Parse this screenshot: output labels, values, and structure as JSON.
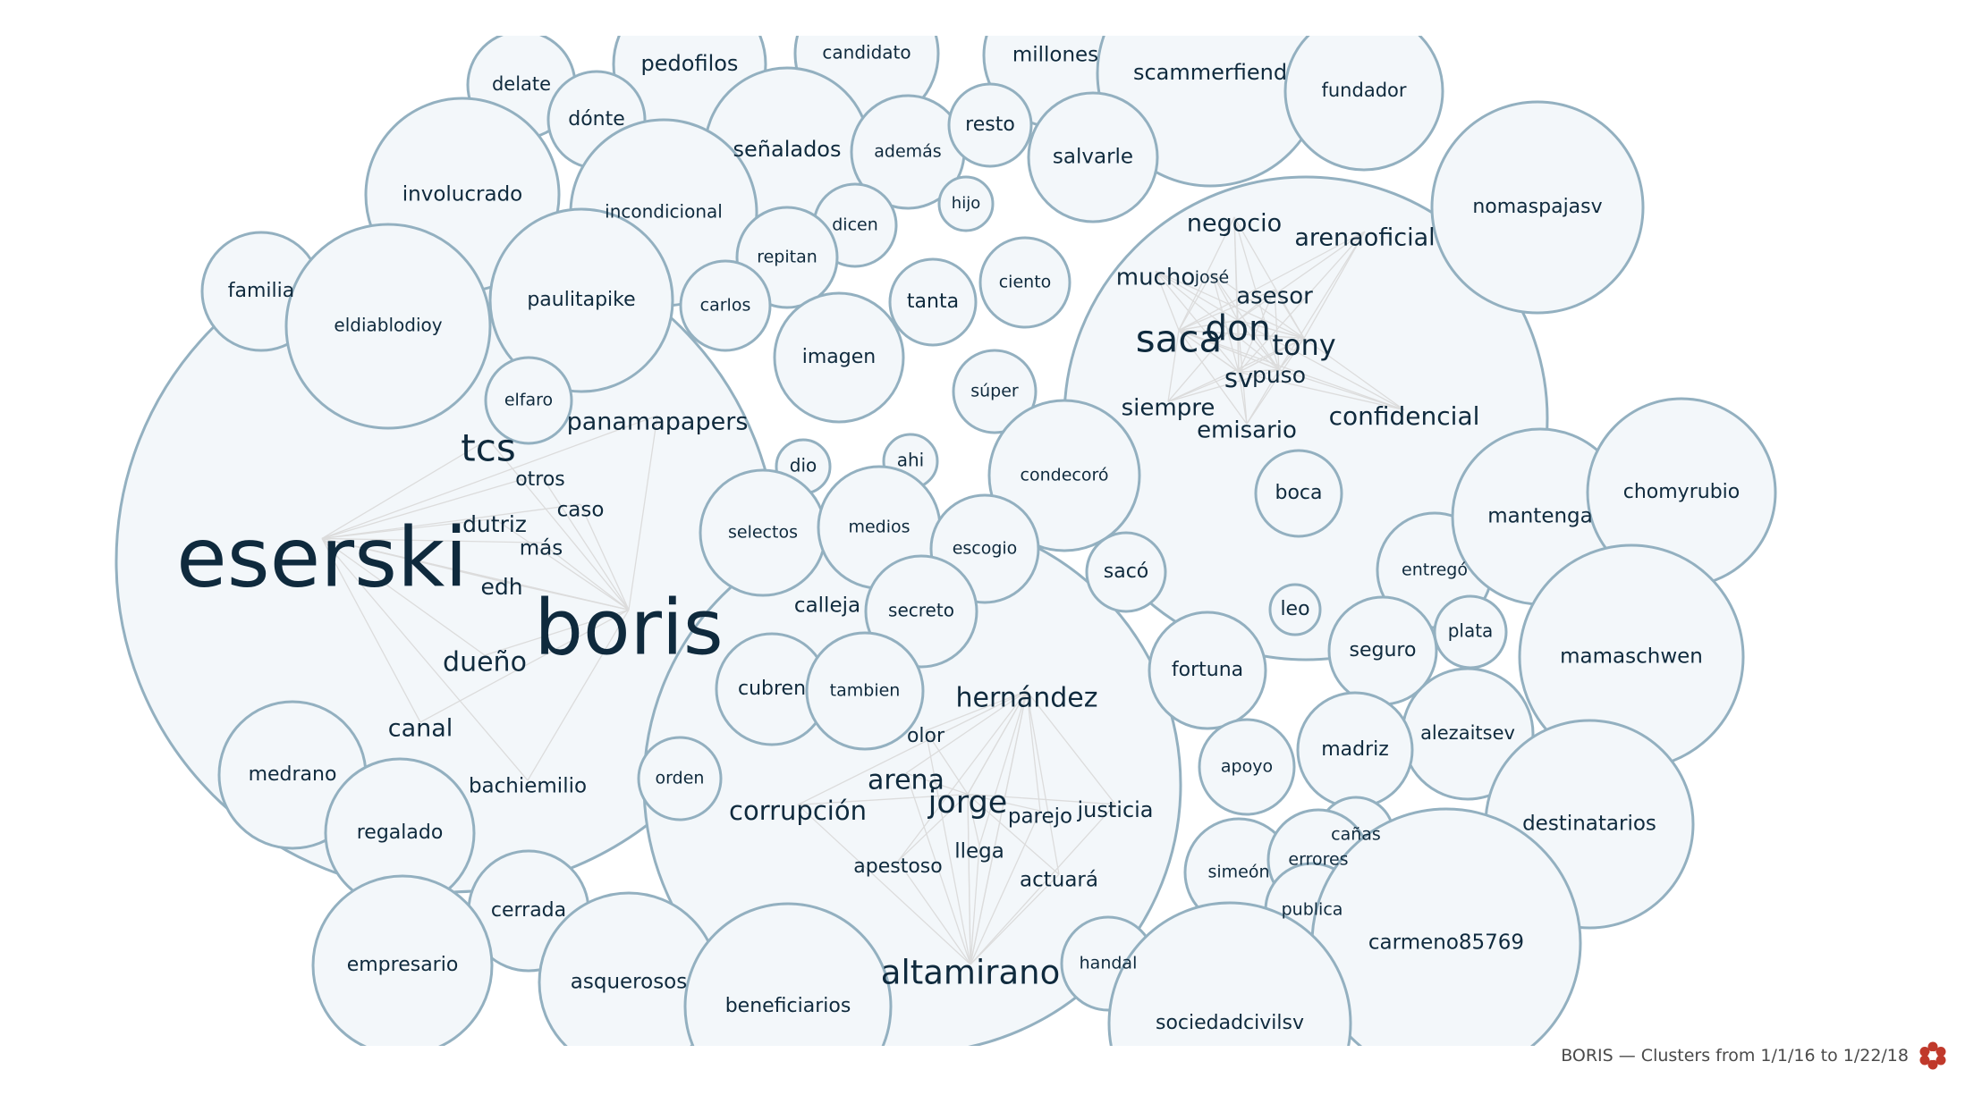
{
  "footer": {
    "caption": "BORIS — Clusters from 1/1/16 to 1/22/18",
    "icon": "flower-logo-icon",
    "icon_color": "#c0392b"
  },
  "colors": {
    "bubble_fill": "#f3f7fa",
    "bubble_stroke": "#93b0c0",
    "link": "#dcdcdc",
    "text": "#0f2a3d"
  },
  "words": [
    "eserski",
    "boris",
    "tcs",
    "dueño",
    "dutriz",
    "otros",
    "caso",
    "más",
    "edh",
    "panamapapers",
    "canal",
    "bachiemilio",
    "hernández",
    "jorge",
    "arena",
    "corrupción",
    "olor",
    "parejo",
    "justicia",
    "llega",
    "apestoso",
    "actuará",
    "altamirano",
    "saca",
    "don",
    "tony",
    "sv",
    "puso",
    "negocio",
    "arenaoficial",
    "mucho",
    "asesor",
    "siempre",
    "emisario",
    "confidencial",
    "calleja",
    "josé",
    "delate",
    "pedofilos",
    "candidato",
    "millones",
    "scammerfiend",
    "fundador",
    "dónte",
    "señalados",
    "además",
    "resto",
    "salvarle",
    "involucrado",
    "incondicional",
    "hijo",
    "dicen",
    "nomaspajasv",
    "familia",
    "eldiablodioy",
    "paulitapike",
    "repitan",
    "carlos",
    "tanta",
    "ciento",
    "imagen",
    "elfaro",
    "súper",
    "dio",
    "ahi",
    "condecoró",
    "selectos",
    "medios",
    "escogio",
    "boca",
    "sacó",
    "secreto",
    "leo",
    "entregó",
    "mantenga",
    "chomyrubio",
    "seguro",
    "plata",
    "mamaschwen",
    "cubren",
    "tambien",
    "fortuna",
    "alezaitsev",
    "madriz",
    "apoyo",
    "destinatarios",
    "medrano",
    "orden",
    "regalado",
    "cañas",
    "simeón",
    "errores",
    "publica",
    "carmeno85769",
    "cerrada",
    "empresario",
    "asquerosos",
    "beneficiarios",
    "handal",
    "sociedadcivilsv"
  ]
}
